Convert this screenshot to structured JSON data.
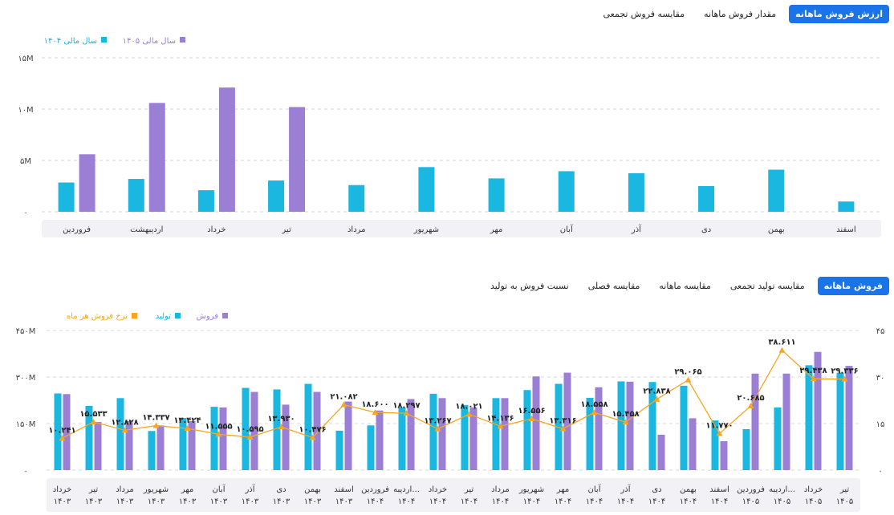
{
  "top_tabs": [
    {
      "label": "ارزش فروش ماهانه",
      "active": true
    },
    {
      "label": "مقدار فروش ماهانه",
      "active": false
    },
    {
      "label": "مقایسه فروش تجمعی",
      "active": false
    }
  ],
  "bottom_tabs": [
    {
      "label": "فروش ماهانه",
      "active": true
    },
    {
      "label": "مقایسه تولید تجمعی",
      "active": false
    },
    {
      "label": "مقایسه ماهانه",
      "active": false
    },
    {
      "label": "مقایسه فصلی",
      "active": false
    },
    {
      "label": "نسبت فروش به تولید",
      "active": false
    }
  ],
  "colors": {
    "cyan": "#1ab7e0",
    "purple": "#9b7fd4",
    "orange": "#f5a623",
    "tab_active": "#1a73e8"
  },
  "chart_data": [
    {
      "type": "bar",
      "categories": [
        "فروردین",
        "اردیبهشت",
        "خرداد",
        "تیر",
        "مرداد",
        "شهریور",
        "مهر",
        "آبان",
        "آذر",
        "دی",
        "بهمن",
        "اسفند"
      ],
      "series": [
        {
          "name": "سال مالی ۱۴۰۴",
          "color": "#1ab7e0",
          "values": [
            2.85,
            3.2,
            2.1,
            3.05,
            2.6,
            4.35,
            3.25,
            3.95,
            3.75,
            2.5,
            4.1,
            1.0
          ]
        },
        {
          "name": "سال مالی ۱۴۰۵",
          "color": "#9b7fd4",
          "values": [
            5.6,
            10.6,
            12.1,
            10.2,
            null,
            null,
            null,
            null,
            null,
            null,
            null,
            null
          ]
        }
      ],
      "ylim": [
        0,
        15
      ],
      "yticks": [
        "۰",
        "۵M",
        "۱۰M",
        "۱۵M"
      ],
      "legend_position": "top-left",
      "grid": true
    },
    {
      "type": "bar",
      "categories": [
        "خرداد ۱۴۰۳",
        "تیر ۱۴۰۳",
        "مرداد ۱۴۰۳",
        "شهریور ۱۴۰۳",
        "مهر ۱۴۰۳",
        "آبان ۱۴۰۳",
        "آذر ۱۴۰۳",
        "دی ۱۴۰۳",
        "بهمن ۱۴۰۳",
        "اسفند ۱۴۰۳",
        "فروردین ۱۴۰۴",
        "اردیبه... ۱۴۰۴",
        "خرداد ۱۴۰۴",
        "تیر ۱۴۰۴",
        "مرداد ۱۴۰۴",
        "شهریور ۱۴۰۴",
        "مهر ۱۴۰۴",
        "آبان ۱۴۰۴",
        "آذر ۱۴۰۴",
        "دی ۱۴۰۴",
        "بهمن ۱۴۰۴",
        "اسفند ۱۴۰۴",
        "فروردین ۱۴۰۵",
        "اردیبه... ۱۴۰۵",
        "خرداد ۱۴۰۵",
        "تیر ۱۴۰۵"
      ],
      "series": [
        {
          "name": "تولید",
          "kind": "bar",
          "axis": "left",
          "color": "#1ab7e0",
          "values": [
            247,
            207,
            232,
            126,
            168,
            204,
            265,
            260,
            278,
            127,
            144,
            202,
            246,
            210,
            232,
            258,
            278,
            233,
            286,
            284,
            272,
            160,
            132,
            202,
            338,
            314
          ]
        },
        {
          "name": "فروش",
          "kind": "bar",
          "axis": "left",
          "color": "#9b7fd4",
          "values": [
            245,
            155,
            158,
            144,
            158,
            202,
            252,
            211,
            252,
            221,
            192,
            229,
            232,
            202,
            232,
            302,
            314,
            267,
            285,
            114,
            167,
            93,
            311,
            311,
            381,
            336
          ]
        },
        {
          "name": "نرخ فروش هر ماه",
          "kind": "line",
          "axis": "right",
          "color": "#f5a623",
          "values": [
            10.241,
            15.533,
            12.828,
            14.337,
            13.424,
            11.555,
            10.595,
            13.93,
            10.476,
            21.082,
            18.6,
            18.297,
            13.267,
            18.021,
            14.136,
            16.556,
            13.316,
            18.558,
            15.458,
            22.838,
            29.065,
            11.77,
            20.685,
            38.611,
            29.438,
            29.336
          ]
        }
      ],
      "data_labels": [
        "۱۰.۲۴۱",
        "۱۵.۵۳۳",
        "۱۲.۸۲۸",
        "۱۴.۳۳۷",
        "۱۳.۴۲۴",
        "۱۱.۵۵۵",
        "۱۰.۵۹۵",
        "۱۳.۹۳۰",
        "۱۰.۴۷۶",
        "۲۱.۰۸۲",
        "۱۸.۶۰۰",
        "۱۸.۲۹۷",
        "۱۳.۲۶۷",
        "۱۸.۰۲۱",
        "۱۴.۱۳۶",
        "۱۶.۵۵۶",
        "۱۳.۳۱۶",
        "۱۸.۵۵۸",
        "۱۵.۴۵۸",
        "۲۲.۸۳۸",
        "۲۹.۰۶۵",
        "۱۱.۷۷۰",
        "۲۰.۶۸۵",
        "۳۸.۶۱۱",
        "۲۹.۴۳۸",
        "۲۹.۳۳۶"
      ],
      "ylim": [
        0,
        450
      ],
      "ylim_right": [
        0,
        45
      ],
      "yticks_left": [
        "۰",
        "۱۵۰M",
        "۳۰۰M",
        "۴۵۰M"
      ],
      "yticks_right": [
        "۰",
        "۱۵",
        "۳۰",
        "۴۵"
      ],
      "legend_position": "top-left",
      "grid": true
    }
  ]
}
